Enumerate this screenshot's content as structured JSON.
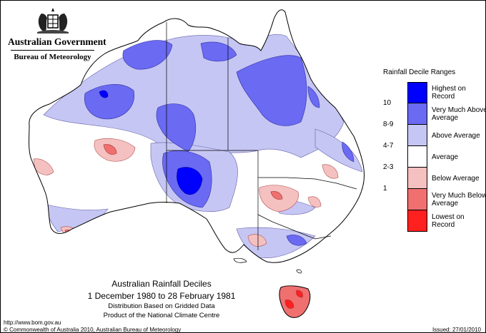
{
  "header": {
    "government": "Australian Government",
    "bureau": "Bureau of Meteorology"
  },
  "legend": {
    "title": "Rainfall Decile Ranges",
    "items": [
      {
        "code": "",
        "label": "Highest on Record",
        "color": "#0000ff"
      },
      {
        "code": "10",
        "label": "Very Much Above Average",
        "color": "#6a6af2"
      },
      {
        "code": "8-9",
        "label": "Above Average",
        "color": "#c6c6f4"
      },
      {
        "code": "4-7",
        "label": "Average",
        "color": "#ffffff"
      },
      {
        "code": "2-3",
        "label": "Below Average",
        "color": "#f5c0c0"
      },
      {
        "code": "1",
        "label": "Very Much Below Average",
        "color": "#f07070"
      },
      {
        "code": "",
        "label": "Lowest on Record",
        "color": "#ff2020"
      }
    ]
  },
  "map": {
    "title": "Australian Rainfall Deciles",
    "period": "1 December 1980 to 28 February 1981",
    "note1": "Distribution Based on Gridded Data",
    "note2": "Product of the National Climate Centre"
  },
  "footer": {
    "url": "http://www.bom.gov.au",
    "copyright": "© Commonwealth of Australia 2010, Australian Bureau of Meteorology",
    "issued": "Issued: 27/01/2010"
  }
}
